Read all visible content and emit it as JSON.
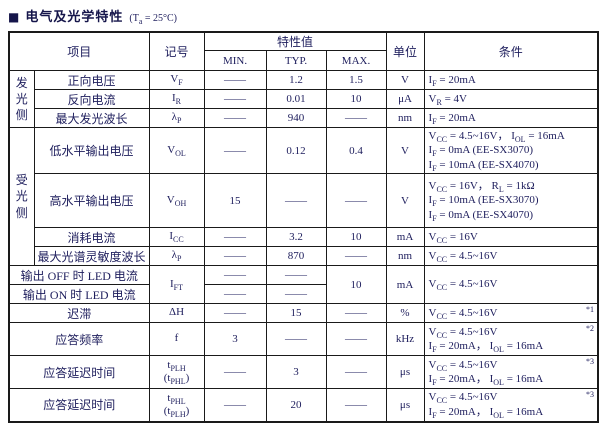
{
  "title": {
    "bullet": "■",
    "heading": "电气及光学特性",
    "condition": "(T{a} = 25°C)"
  },
  "table": {
    "headers": {
      "item": "项目",
      "symbol": "记号",
      "value_group": "特性值",
      "min": "MIN.",
      "typ": "TYP.",
      "max": "MAX.",
      "unit": "单位",
      "condition": "条件"
    },
    "groups": {
      "emitter": "发光侧",
      "receiver": "受光侧"
    },
    "rows": {
      "vf": {
        "item": "正向电压",
        "symbol": "V{F}",
        "min": "——",
        "typ": "1.2",
        "max": "1.5",
        "unit": "V",
        "cond": [
          "I{F} = 20mA"
        ]
      },
      "ir": {
        "item": "反向电流",
        "symbol": "I{R}",
        "min": "——",
        "typ": "0.01",
        "max": "10",
        "unit": "μA",
        "cond": [
          "V{R} = 4V"
        ]
      },
      "lp_emit": {
        "item": "最大发光波长",
        "symbol": "λ{P}",
        "min": "——",
        "typ": "940",
        "max": "——",
        "unit": "nm",
        "cond": [
          "I{F} = 20mA"
        ]
      },
      "vol": {
        "item": "低水平输出电压",
        "symbol": "V{OL}",
        "min": "——",
        "typ": "0.12",
        "max": "0.4",
        "unit": "V",
        "cond": [
          "V{CC} = 4.5~16V， I{OL} = 16mA",
          "I{F} = 0mA (EE-SX3070)",
          "I{F} = 10mA (EE-SX4070)"
        ]
      },
      "voh": {
        "item": "高水平输出电压",
        "symbol": "V{OH}",
        "min": "15",
        "typ": "——",
        "max": "——",
        "unit": "V",
        "cond": [
          "V{CC} = 16V， R{L} = 1kΩ",
          "I{F} = 10mA (EE-SX3070)",
          "I{F} = 0mA (EE-SX4070)"
        ]
      },
      "icc": {
        "item": "消耗电流",
        "symbol": "I{CC}",
        "min": "——",
        "typ": "3.2",
        "max": "10",
        "unit": "mA",
        "cond": [
          "V{CC} = 16V"
        ]
      },
      "lp_recv": {
        "item": "最大光谱灵敏度波长",
        "symbol": "λ{P}",
        "min": "——",
        "typ": "870",
        "max": "——",
        "unit": "nm",
        "cond": [
          "V{CC} = 4.5~16V"
        ]
      },
      "ift_off": {
        "item": "输出 OFF 时 LED 电流",
        "min": "——",
        "typ": "——"
      },
      "ift_on": {
        "item": "输出 ON 时 LED 电流",
        "min": "——",
        "typ": "——"
      },
      "ift": {
        "symbol": "I{FT}",
        "max": "10",
        "unit": "mA",
        "cond": [
          "V{CC} = 4.5~16V"
        ]
      },
      "hys": {
        "item": "迟滞",
        "symbol": "ΔH",
        "min": "——",
        "typ": "15",
        "max": "——",
        "unit": "%",
        "cond": [
          "V{CC} = 4.5~16V"
        ],
        "note": "*1"
      },
      "freq": {
        "item": "应答频率",
        "symbol": "f",
        "min": "3",
        "typ": "——",
        "max": "——",
        "unit": "kHz",
        "cond": [
          "V{CC} = 4.5~16V",
          "I{F} = 20mA， I{OL} = 16mA"
        ],
        "note": "*2"
      },
      "tplh": {
        "item": "应答延迟时间",
        "symbol": "t{PLH}\n(t{PHL})",
        "min": "——",
        "typ": "3",
        "max": "——",
        "unit": "μs",
        "cond": [
          "V{CC} = 4.5~16V",
          "I{F} = 20mA， I{OL} = 16mA"
        ],
        "note": "*3"
      },
      "tphl": {
        "item": "应答延迟时间",
        "symbol": "t{PHL}\n(t{PLH})",
        "min": "——",
        "typ": "20",
        "max": "——",
        "unit": "μs",
        "cond": [
          "V{CC} = 4.5~16V",
          "I{F} = 20mA， I{OL} = 16mA"
        ],
        "note": "*3"
      }
    },
    "colors": {
      "text": "#1d1d5c",
      "border": "#1a1a1a",
      "background": "#ffffff"
    }
  }
}
